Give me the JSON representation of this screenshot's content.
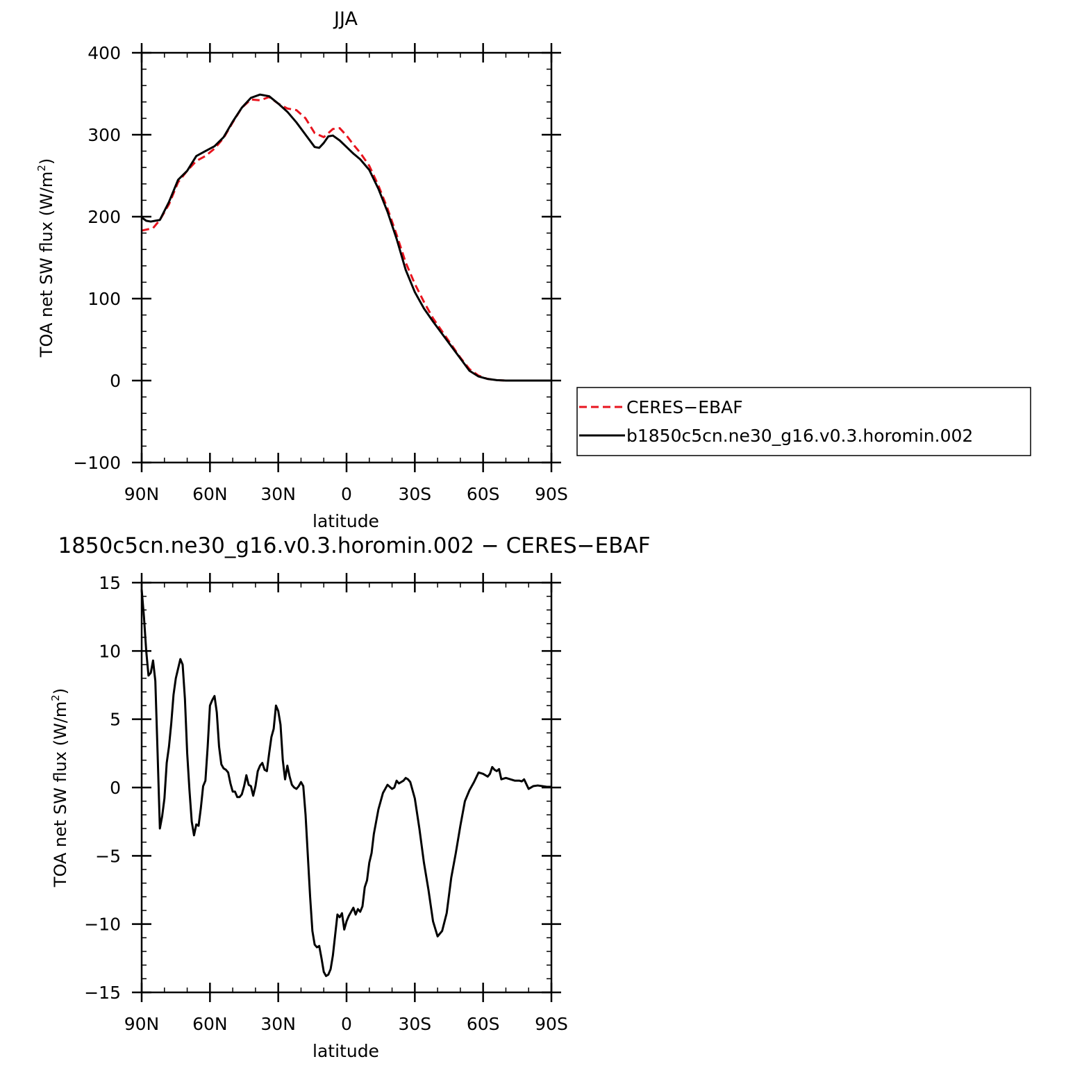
{
  "chart_data": [
    {
      "type": "line",
      "title": "JJA",
      "xlabel": "latitude",
      "ylabel": "TOA net SW flux (W/m²)",
      "ylabel_main": "TOA net SW flux (W/m",
      "ylabel_sup": "2",
      "ylabel_close": ")",
      "xlim": [
        90,
        -90
      ],
      "ylim": [
        -100,
        400
      ],
      "x_ticks": [
        90,
        60,
        30,
        0,
        -30,
        -60,
        -90
      ],
      "x_tick_labels": [
        "90N",
        "60N",
        "30N",
        "0",
        "30S",
        "60S",
        "90S"
      ],
      "y_ticks": [
        -100,
        0,
        100,
        200,
        300,
        400
      ],
      "y_tick_labels": [
        "−100",
        "0",
        "100",
        "200",
        "300",
        "400"
      ],
      "legend": {
        "placement": "right",
        "entries": [
          "CERES−EBAF",
          "b1850c5cn.ne30_g16.v0.3.horomin.002"
        ]
      },
      "series": [
        {
          "name": "CERES−EBAF",
          "color": "#e8141e",
          "style": "dashed",
          "x": [
            90,
            85,
            82,
            78,
            74,
            70,
            66,
            62,
            58,
            54,
            50,
            46,
            42,
            38,
            34,
            30,
            26,
            22,
            18,
            14,
            10,
            6,
            3,
            0,
            -3,
            -6,
            -10,
            -14,
            -18,
            -22,
            -26,
            -30,
            -34,
            -38,
            -42,
            -46,
            -50,
            -54,
            -58,
            -62,
            -66,
            -70,
            -74,
            -78,
            -82,
            -86,
            -90
          ],
          "values": [
            183,
            186,
            196,
            215,
            242,
            256,
            268,
            274,
            283,
            296,
            315,
            333,
            343,
            342,
            346,
            338,
            332,
            330,
            320,
            302,
            297,
            307,
            308,
            299,
            288,
            278,
            262,
            238,
            210,
            178,
            144,
            118,
            96,
            76,
            60,
            44,
            28,
            14,
            6,
            2,
            0.5,
            0,
            0,
            0,
            0,
            0,
            0
          ]
        },
        {
          "name": "b1850c5cn.ne30_g16.v0.3.horomin.002",
          "color": "#000000",
          "style": "solid",
          "x": [
            90,
            88,
            86,
            84,
            82,
            78,
            74,
            70,
            66,
            62,
            58,
            54,
            50,
            46,
            42,
            38,
            34,
            30,
            26,
            22,
            18,
            14,
            12,
            10,
            8,
            6,
            3,
            0,
            -3,
            -6,
            -10,
            -14,
            -18,
            -22,
            -26,
            -30,
            -34,
            -38,
            -42,
            -46,
            -50,
            -54,
            -58,
            -62,
            -66,
            -70,
            -74,
            -78,
            -82,
            -86,
            -90
          ],
          "values": [
            199,
            195,
            194,
            195,
            196,
            218,
            245,
            256,
            274,
            280,
            286,
            297,
            316,
            333,
            345,
            349,
            347,
            338,
            328,
            315,
            300,
            285,
            284,
            290,
            298,
            299,
            293,
            285,
            277,
            270,
            257,
            234,
            206,
            173,
            135,
            108,
            88,
            72,
            57,
            42,
            27,
            12,
            5,
            2,
            0.5,
            0,
            0,
            0,
            0,
            0,
            0
          ]
        }
      ]
    },
    {
      "type": "line",
      "title": "1850c5cn.ne30_g16.v0.3.horomin.002 − CERES−EBAF",
      "xlabel": "latitude",
      "ylabel": "TOA net SW flux (W/m²)",
      "ylabel_main": "TOA net SW flux (W/m",
      "ylabel_sup": "2",
      "ylabel_close": ")",
      "xlim": [
        90,
        -90
      ],
      "ylim": [
        -15,
        15
      ],
      "x_ticks": [
        90,
        60,
        30,
        0,
        -30,
        -60,
        -90
      ],
      "x_tick_labels": [
        "90N",
        "60N",
        "30N",
        "0",
        "30S",
        "60S",
        "90S"
      ],
      "y_ticks": [
        -15,
        -10,
        -5,
        0,
        5,
        10,
        15
      ],
      "y_tick_labels": [
        "−15",
        "−10",
        "−5",
        "0",
        "5",
        "10",
        "15"
      ],
      "series": [
        {
          "name": "b1850c5cn.ne30_g16.v0.3.horomin.002 − CERES−EBAF",
          "color": "#000000",
          "style": "solid",
          "x": [
            90,
            89,
            88,
            87,
            86,
            85,
            84,
            83,
            82,
            81,
            80,
            79,
            78,
            77,
            76,
            75,
            74,
            73,
            72,
            71,
            70,
            69,
            68,
            67,
            66,
            65,
            64,
            63,
            62,
            61,
            60,
            59,
            58,
            57,
            56,
            55,
            54,
            53,
            52,
            51,
            50,
            49,
            48,
            47,
            46,
            45,
            44,
            43,
            42,
            41,
            40,
            39,
            38,
            37,
            36,
            35,
            34,
            33,
            32,
            31,
            30,
            29,
            28,
            27,
            26,
            25,
            24,
            23,
            22,
            21,
            20,
            19,
            18,
            17,
            16,
            15,
            14,
            13,
            12,
            11,
            10,
            9,
            8,
            7,
            6,
            5,
            4,
            3,
            2,
            1,
            0,
            -1,
            -2,
            -3,
            -4,
            -5,
            -6,
            -7,
            -8,
            -9,
            -10,
            -11,
            -12,
            -14,
            -16,
            -18,
            -20,
            -21,
            -22,
            -23,
            -24,
            -25,
            -26,
            -27,
            -28,
            -30,
            -32,
            -34,
            -36,
            -38,
            -40,
            -42,
            -44,
            -46,
            -48,
            -50,
            -52,
            -54,
            -56,
            -58,
            -60,
            -62,
            -63,
            -64,
            -65,
            -66,
            -67,
            -68,
            -70,
            -72,
            -74,
            -76,
            -77,
            -78,
            -80,
            -82,
            -84,
            -86,
            -88,
            -90
          ],
          "values": [
            14.5,
            12.5,
            10,
            8.2,
            8.4,
            9.3,
            7.8,
            2.5,
            -3,
            -2.1,
            -0.8,
            1.8,
            3,
            4.7,
            6.8,
            8,
            8.7,
            9.4,
            9.0,
            6.5,
            2.5,
            -0.2,
            -2.5,
            -3.5,
            -2.7,
            -2.8,
            -1.5,
            0.1,
            0.5,
            3,
            6,
            6.4,
            6.7,
            5.5,
            3,
            1.7,
            1.4,
            1.3,
            1.1,
            0.3,
            -0.3,
            -0.3,
            -0.7,
            -0.7,
            -0.5,
            0.1,
            0.9,
            0.2,
            0.1,
            -0.6,
            0.1,
            1.2,
            1.6,
            1.8,
            1.3,
            1.2,
            2.5,
            3.7,
            4.3,
            6,
            5.6,
            4.6,
            2.0,
            0.6,
            1.6,
            0.8,
            0.2,
            0,
            -0.1,
            0.1,
            0.4,
            0.1,
            -2,
            -5,
            -8,
            -10.5,
            -11.5,
            -11.7,
            -11.6,
            -12.5,
            -13.5,
            -13.8,
            -13.7,
            -13.3,
            -12.3,
            -10.8,
            -9.3,
            -9.5,
            -9.2,
            -10.4,
            -9.8,
            -9.4,
            -9.1,
            -8.8,
            -9.3,
            -8.9,
            -9.1,
            -8.7,
            -7.3,
            -6.8,
            -5.5,
            -4.8,
            -3.4,
            -1.6,
            -0.4,
            0.2,
            -0.1,
            0,
            0.5,
            0.3,
            0.4,
            0.5,
            0.7,
            0.6,
            0.4,
            -0.8,
            -3,
            -5.5,
            -7.5,
            -9.8,
            -10.9,
            -10.5,
            -9.2,
            -6.6,
            -4.8,
            -2.8,
            -1,
            -0.2,
            0.4,
            1.1,
            1,
            0.8,
            1.0,
            1.5,
            1.3,
            1.2,
            1.35,
            0.6,
            0.7,
            0.6,
            0.5,
            0.5,
            0.45,
            0.6,
            -0.1,
            0.1,
            0.15,
            0.1,
            0.05,
            0.05
          ]
        }
      ]
    }
  ]
}
